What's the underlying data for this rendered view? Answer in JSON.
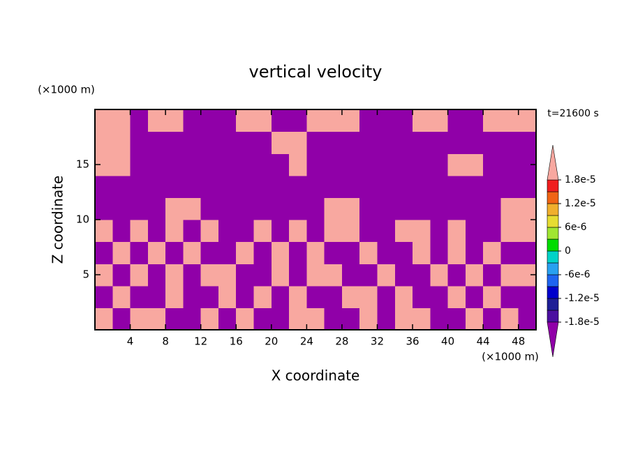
{
  "chart_data": {
    "type": "contour",
    "title": "vertical velocity",
    "x_label": "X coordinate",
    "y_label": "Z coordinate",
    "x_unit": "(×1000 m)",
    "y_unit": "(×1000 m)",
    "annotation": "t=21600 s",
    "xlim": [
      0,
      50
    ],
    "ylim": [
      0,
      20
    ],
    "xticks": [
      4,
      8,
      12,
      16,
      20,
      24,
      28,
      32,
      36,
      40,
      44,
      48
    ],
    "yticks": [
      5,
      10,
      15
    ],
    "x": [
      1,
      3,
      5,
      7,
      9,
      11,
      13,
      15,
      17,
      19,
      21,
      23,
      25,
      27,
      29,
      31,
      33,
      35,
      37,
      39,
      41,
      43,
      45,
      47,
      49
    ],
    "y": [
      1,
      3,
      5,
      7,
      9,
      11,
      13,
      15,
      17,
      19
    ],
    "z": [
      [
        2e-05,
        -2e-05,
        2e-05,
        2e-05,
        -2e-05,
        -2e-05,
        2e-05,
        -2e-05,
        2e-05,
        -2e-05,
        -2e-05,
        2e-05,
        2e-05,
        -2e-05,
        -2e-05,
        2e-05,
        -2e-05,
        2e-05,
        2e-05,
        -2e-05,
        -2e-05,
        2e-05,
        -2e-05,
        2e-05,
        -2e-05
      ],
      [
        -2e-05,
        2e-05,
        -2e-05,
        -2e-05,
        2e-05,
        -2e-05,
        -2e-05,
        2e-05,
        -2e-05,
        2e-05,
        -2e-05,
        2e-05,
        -2e-05,
        -2e-05,
        2e-05,
        2e-05,
        -2e-05,
        2e-05,
        -2e-05,
        -2e-05,
        2e-05,
        -2e-05,
        2e-05,
        -2e-05,
        -2e-05
      ],
      [
        2e-05,
        -2e-05,
        2e-05,
        -2e-05,
        2e-05,
        -2e-05,
        2e-05,
        2e-05,
        -2e-05,
        -2e-05,
        2e-05,
        -2e-05,
        2e-05,
        2e-05,
        -2e-05,
        -2e-05,
        2e-05,
        -2e-05,
        -2e-05,
        2e-05,
        -2e-05,
        2e-05,
        -2e-05,
        2e-05,
        2e-05
      ],
      [
        -2e-05,
        2e-05,
        -2e-05,
        2e-05,
        -2e-05,
        2e-05,
        -2e-05,
        -2e-05,
        2e-05,
        -2e-05,
        2e-05,
        -2e-05,
        2e-05,
        -2e-05,
        -2e-05,
        2e-05,
        -2e-05,
        -2e-05,
        2e-05,
        -2e-05,
        2e-05,
        -2e-05,
        2e-05,
        -2e-05,
        -2e-05
      ],
      [
        2e-05,
        -2e-05,
        2e-05,
        -2e-05,
        2e-05,
        -2e-05,
        2e-05,
        -2e-05,
        -2e-05,
        2e-05,
        -2e-05,
        2e-05,
        -2e-05,
        2e-05,
        2e-05,
        -2e-05,
        -2e-05,
        2e-05,
        2e-05,
        -2e-05,
        2e-05,
        -2e-05,
        -2e-05,
        2e-05,
        2e-05
      ],
      [
        -2e-05,
        -2e-05,
        -2e-05,
        -2e-05,
        2e-05,
        2e-05,
        -2e-05,
        -2e-05,
        -2e-05,
        -2e-05,
        -2e-05,
        -2e-05,
        -2e-05,
        2e-05,
        2e-05,
        -2e-05,
        -2e-05,
        -2e-05,
        -2e-05,
        -2e-05,
        -2e-05,
        -2e-05,
        -2e-05,
        2e-05,
        2e-05
      ],
      [
        -2e-05,
        -2e-05,
        -2e-05,
        -2e-05,
        -2e-05,
        -2e-05,
        -2e-05,
        -2e-05,
        -2e-05,
        -2e-05,
        -2e-05,
        -2e-05,
        -2e-05,
        -2e-05,
        -2e-05,
        -2e-05,
        -2e-05,
        -2e-05,
        -2e-05,
        -2e-05,
        -2e-05,
        -2e-05,
        -2e-05,
        -2e-05,
        -2e-05
      ],
      [
        2e-05,
        2e-05,
        -2e-05,
        -2e-05,
        -2e-05,
        -2e-05,
        -2e-05,
        -2e-05,
        -2e-05,
        -2e-05,
        -2e-05,
        2e-05,
        -2e-05,
        -2e-05,
        -2e-05,
        -2e-05,
        -2e-05,
        -2e-05,
        -2e-05,
        -2e-05,
        2e-05,
        2e-05,
        -2e-05,
        -2e-05,
        -2e-05
      ],
      [
        2e-05,
        2e-05,
        -2e-05,
        -2e-05,
        -2e-05,
        -2e-05,
        -2e-05,
        -2e-05,
        -2e-05,
        -2e-05,
        2e-05,
        2e-05,
        -2e-05,
        -2e-05,
        -2e-05,
        -2e-05,
        -2e-05,
        -2e-05,
        -2e-05,
        -2e-05,
        -2e-05,
        -2e-05,
        -2e-05,
        -2e-05,
        -2e-05
      ],
      [
        2e-05,
        2e-05,
        -2e-05,
        2e-05,
        2e-05,
        -2e-05,
        -2e-05,
        -2e-05,
        2e-05,
        2e-05,
        -2e-05,
        -2e-05,
        2e-05,
        2e-05,
        2e-05,
        -2e-05,
        -2e-05,
        -2e-05,
        2e-05,
        2e-05,
        -2e-05,
        -2e-05,
        2e-05,
        2e-05,
        2e-05
      ]
    ],
    "levels": [
      -1.8e-05,
      -1.5e-05,
      -1.2e-05,
      -9e-06,
      -6e-06,
      -3e-06,
      0,
      3e-06,
      6e-06,
      9e-06,
      1.2e-05,
      1.5e-05,
      1.8e-05
    ],
    "colors": [
      "#9000a8",
      "#4b0fa0",
      "#1e1e96",
      "#0000cd",
      "#1e64f0",
      "#28a0f0",
      "#00d2c8",
      "#00dc00",
      "#a0e632",
      "#e6dc32",
      "#f0af2d",
      "#f06414",
      "#f01e1e",
      "#f8a8a0"
    ],
    "colorbar_ticks": [
      {
        "value": -1.8e-05,
        "label": "-1.8e-5"
      },
      {
        "value": -1.2e-05,
        "label": "-1.2e-5"
      },
      {
        "value": -6e-06,
        "label": "-6e-6"
      },
      0,
      {
        "value": 6e-06,
        "label": "6e-6"
      },
      {
        "value": 1.2e-05,
        "label": "1.2e-5"
      },
      {
        "value": 1.8e-05,
        "label": "1.8e-5"
      }
    ]
  }
}
